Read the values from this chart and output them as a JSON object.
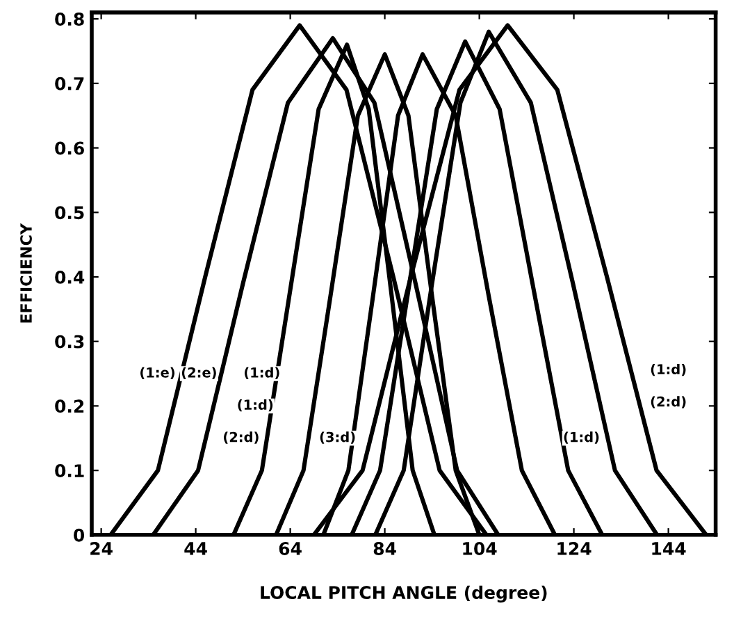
{
  "chart_data": {
    "type": "line",
    "xlabel": "LOCAL PITCH ANGLE (degree)",
    "ylabel": "EFFICIENCY",
    "xlim": [
      22,
      154
    ],
    "ylim": [
      0,
      0.81
    ],
    "xticks": [
      24,
      44,
      64,
      84,
      104,
      124,
      144
    ],
    "yticks": [
      0,
      0.1,
      0.2,
      0.3,
      0.4,
      0.5,
      0.6,
      0.7,
      0.8
    ],
    "grid": false,
    "legend": false,
    "marker": "none",
    "line_style": "solid",
    "series": [
      {
        "color": "#000000",
        "x": [
          26,
          36,
          46,
          56,
          66,
          75.9,
          85.8,
          95.6,
          105.5
        ],
        "values": [
          0,
          0.1,
          0.4,
          0.69,
          0.79,
          0.69,
          0.4,
          0.1,
          0
        ]
      },
      {
        "color": "#000000",
        "x": [
          35,
          44.5,
          54,
          63.5,
          73,
          81.8,
          90.5,
          99.3,
          108
        ],
        "values": [
          0,
          0.1,
          0.39,
          0.67,
          0.77,
          0.67,
          0.39,
          0.1,
          0
        ]
      },
      {
        "color": "#000000",
        "x": [
          52,
          58,
          64,
          70,
          76,
          80.6,
          85.3,
          89.9,
          94.5
        ],
        "values": [
          0,
          0.1,
          0.38,
          0.66,
          0.76,
          0.66,
          0.38,
          0.1,
          0
        ]
      },
      {
        "color": "#000000",
        "x": [
          61,
          66.8,
          72.5,
          78.3,
          84,
          89,
          94,
          99,
          104
        ],
        "values": [
          0,
          0.1,
          0.37,
          0.65,
          0.745,
          0.65,
          0.37,
          0.1,
          0
        ]
      },
      {
        "color": "#000000",
        "x": [
          71,
          76.3,
          81.5,
          86.8,
          92,
          99,
          106,
          113,
          120
        ],
        "values": [
          0,
          0.1,
          0.37,
          0.65,
          0.745,
          0.65,
          0.37,
          0.1,
          0
        ]
      },
      {
        "color": "#000000",
        "x": [
          77,
          83,
          89,
          95,
          101,
          108.3,
          115.5,
          122.8,
          130
        ],
        "values": [
          0,
          0.1,
          0.38,
          0.66,
          0.765,
          0.66,
          0.38,
          0.1,
          0
        ]
      },
      {
        "color": "#000000",
        "x": [
          82,
          88,
          94,
          100,
          106,
          114.9,
          123.8,
          132.7,
          141.6
        ],
        "values": [
          0,
          0.1,
          0.39,
          0.67,
          0.78,
          0.67,
          0.39,
          0.1,
          0
        ]
      },
      {
        "color": "#000000",
        "x": [
          69,
          79.3,
          89.5,
          99.8,
          110,
          120.5,
          131,
          141.5,
          152
        ],
        "values": [
          0,
          0.1,
          0.4,
          0.69,
          0.79,
          0.69,
          0.4,
          0.1,
          0
        ]
      }
    ],
    "annotations": [
      {
        "text": "(1:e)",
        "x": 35.9,
        "y": 0.25
      },
      {
        "text": "(2:e)",
        "x": 44.7,
        "y": 0.25
      },
      {
        "text": "(1:d)",
        "x": 58,
        "y": 0.25
      },
      {
        "text": "(1:d)",
        "x": 56.6,
        "y": 0.2
      },
      {
        "text": "(2:d)",
        "x": 53.6,
        "y": 0.15
      },
      {
        "text": "(3:d)",
        "x": 74,
        "y": 0.15
      },
      {
        "text": "(1:d)",
        "x": 144,
        "y": 0.255
      },
      {
        "text": "(2:d)",
        "x": 144,
        "y": 0.205
      },
      {
        "text": "(1:d)",
        "x": 125.6,
        "y": 0.15
      }
    ]
  }
}
